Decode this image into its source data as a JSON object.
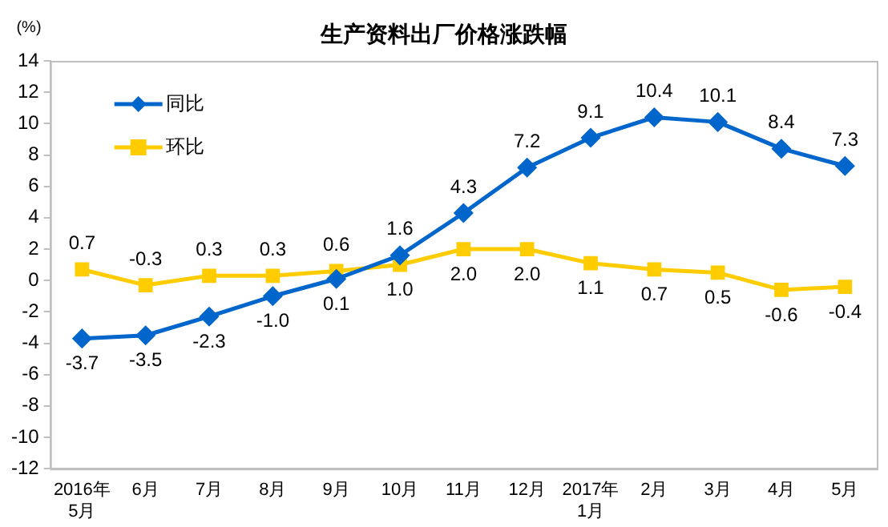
{
  "chart_data": {
    "type": "line",
    "title": "生产资料出厂价格涨跌幅",
    "ylabel": "(%)",
    "categories": [
      "2016年\n5月",
      "6月",
      "7月",
      "8月",
      "9月",
      "10月",
      "11月",
      "12月",
      "2017年\n1月",
      "2月",
      "3月",
      "4月",
      "5月"
    ],
    "series": [
      {
        "name": "同比",
        "color": "#0066cc",
        "marker": "diamond",
        "values": [
          -3.7,
          -3.5,
          -2.3,
          -1.0,
          0.1,
          1.6,
          4.3,
          7.2,
          9.1,
          10.4,
          10.1,
          8.4,
          7.3
        ],
        "value_labels": [
          "-3.7",
          "-3.5",
          "-2.3",
          "-1.0",
          "0.1",
          "1.6",
          "4.3",
          "7.2",
          "9.1",
          "10.4",
          "10.1",
          "8.4",
          "7.3"
        ]
      },
      {
        "name": "环比",
        "color": "#ffcc00",
        "marker": "square",
        "values": [
          0.7,
          -0.3,
          0.3,
          0.3,
          0.6,
          1.0,
          2.0,
          2.0,
          1.1,
          0.7,
          0.5,
          -0.6,
          -0.4
        ],
        "value_labels": [
          "0.7",
          "-0.3",
          "0.3",
          "0.3",
          "0.6",
          "1.0",
          "2.0",
          "2.0",
          "1.1",
          "0.7",
          "0.5",
          "-0.6",
          "-0.4"
        ]
      }
    ],
    "ylim": [
      -12,
      14
    ],
    "yticks": [
      -12,
      -10,
      -8,
      -6,
      -4,
      -2,
      0,
      2,
      4,
      6,
      8,
      10,
      12,
      14
    ],
    "grid": false,
    "legend": "top left"
  }
}
